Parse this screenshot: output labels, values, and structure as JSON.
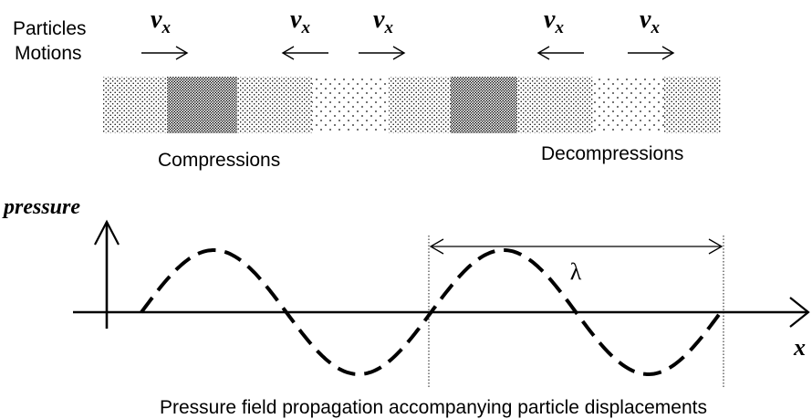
{
  "labels": {
    "particles_line1": "Particles",
    "particles_line2": "Motions",
    "velocity": "v",
    "velocity_sub": "x",
    "compressions": "Compressions",
    "decompressions": "Decompressions",
    "pressure_axis": "pressure",
    "x_axis": "x",
    "wavelength": "λ",
    "caption": "Pressure field propagation accompanying particle displacements"
  },
  "particle_motion_arrows": [
    {
      "direction": "right"
    },
    {
      "direction": "left"
    },
    {
      "direction": "right"
    },
    {
      "direction": "left"
    },
    {
      "direction": "right"
    }
  ],
  "particle_bands": [
    {
      "density": "medium"
    },
    {
      "density": "dense"
    },
    {
      "density": "medium"
    },
    {
      "density": "sparse"
    },
    {
      "density": "medium"
    },
    {
      "density": "dense"
    },
    {
      "density": "medium"
    },
    {
      "density": "sparse"
    },
    {
      "density": "medium"
    }
  ],
  "wave": {
    "style": "dashed",
    "color": "#000000"
  }
}
